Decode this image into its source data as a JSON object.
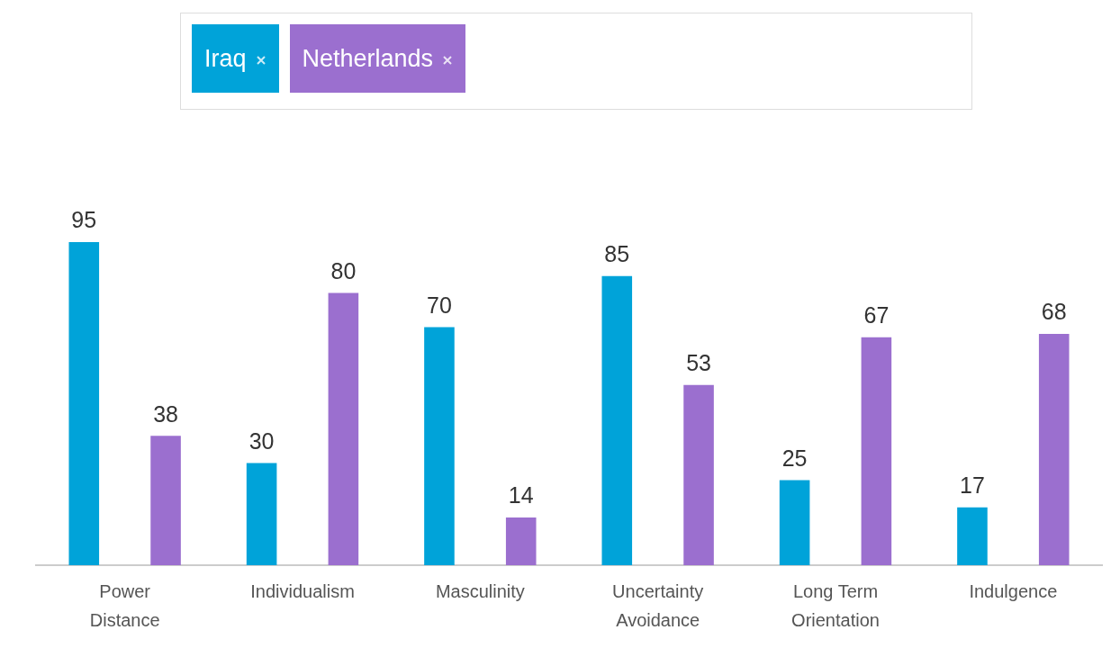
{
  "chart_data": {
    "type": "bar",
    "categories": [
      "Power Distance",
      "Individualism",
      "Masculinity",
      "Uncertainty Avoidance",
      "Long Term Orientation",
      "Indulgence"
    ],
    "series": [
      {
        "name": "Iraq",
        "color": "#00a3d9",
        "values": [
          95,
          30,
          70,
          85,
          25,
          17
        ]
      },
      {
        "name": "Netherlands",
        "color": "#9b6fcf",
        "values": [
          38,
          80,
          14,
          53,
          67,
          68
        ]
      }
    ],
    "data_labels": true,
    "legend": "top",
    "grid": false,
    "tick_labels": "x"
  }
}
